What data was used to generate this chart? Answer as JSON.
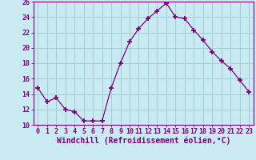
{
  "x": [
    0,
    1,
    2,
    3,
    4,
    5,
    6,
    7,
    8,
    9,
    10,
    11,
    12,
    13,
    14,
    15,
    16,
    17,
    18,
    19,
    20,
    21,
    22,
    23
  ],
  "y": [
    14.8,
    13.0,
    13.5,
    12.0,
    11.7,
    10.5,
    10.5,
    10.5,
    14.8,
    18.0,
    20.8,
    22.5,
    23.8,
    24.8,
    25.8,
    24.0,
    23.8,
    22.3,
    21.0,
    19.5,
    18.3,
    17.3,
    15.8,
    14.3
  ],
  "line_color": "#7f007f",
  "marker": "P",
  "bg_color": "#c8eaf0",
  "grid_color": "#9ecfda",
  "xlabel": "Windchill (Refroidissement éolien,°C)",
  "ylim": [
    10,
    26
  ],
  "xlim": [
    -0.5,
    23.5
  ],
  "yticks": [
    10,
    12,
    14,
    16,
    18,
    20,
    22,
    24,
    26
  ],
  "xticks": [
    0,
    1,
    2,
    3,
    4,
    5,
    6,
    7,
    8,
    9,
    10,
    11,
    12,
    13,
    14,
    15,
    16,
    17,
    18,
    19,
    20,
    21,
    22,
    23
  ],
  "xlabel_color": "#7f007f",
  "tick_color": "#7f007f",
  "axis_color": "#7f007f",
  "label_fontsize": 7,
  "tick_fontsize": 6
}
